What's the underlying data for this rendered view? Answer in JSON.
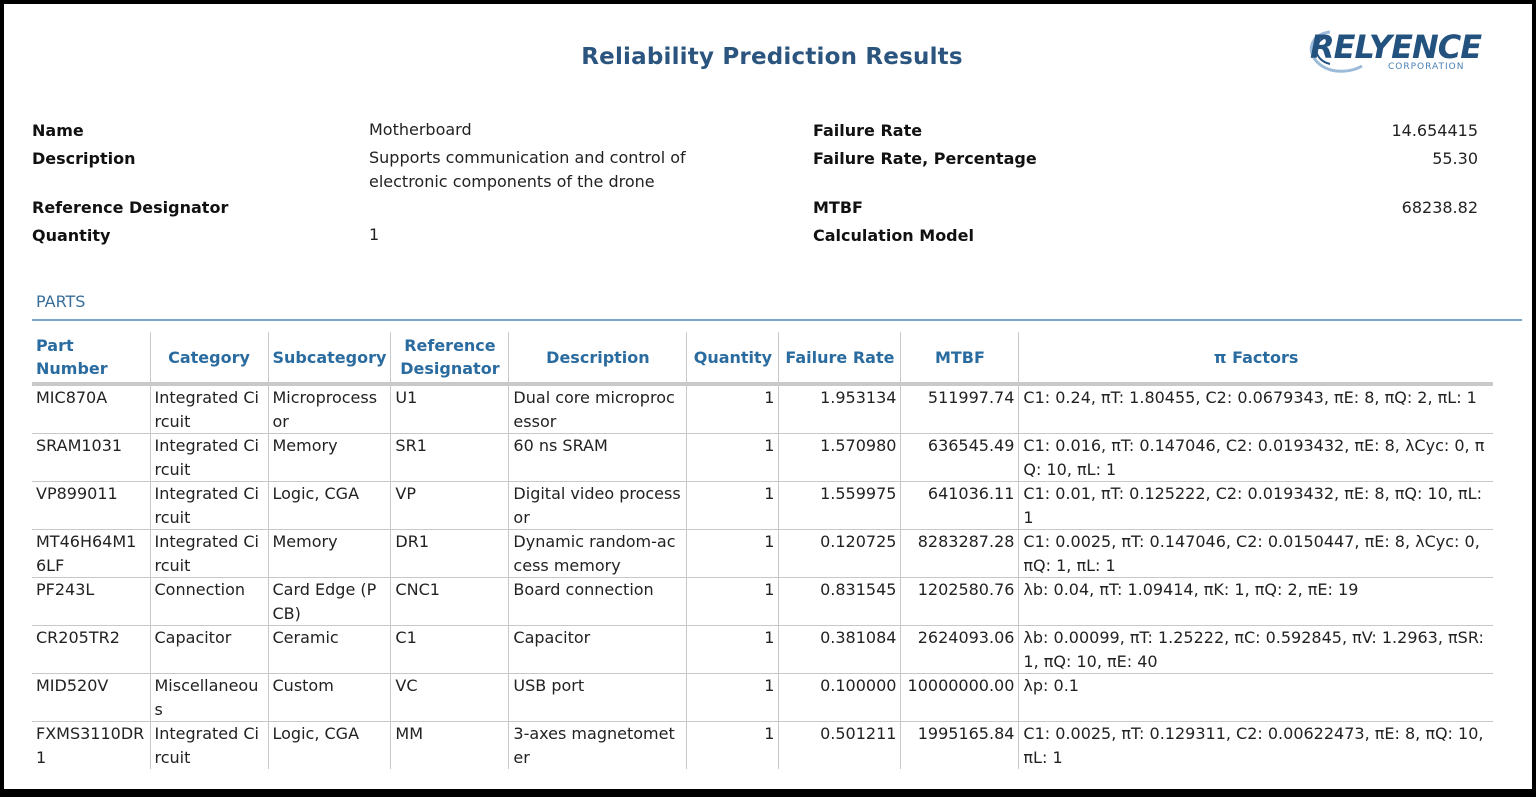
{
  "report": {
    "title": "Reliability Prediction Results",
    "logo_text": "RELYENCE",
    "logo_subtext": "CORPORATION",
    "accent_color": "#2b557e"
  },
  "summary": {
    "name_label": "Name",
    "name_value": "Motherboard",
    "description_label": "Description",
    "description_value": "Supports communication and control of electronic components of the drone",
    "refdes_label": "Reference Designator",
    "refdes_value": "",
    "quantity_label": "Quantity",
    "quantity_value": "1",
    "failure_rate_label": "Failure Rate",
    "failure_rate_value": "14.654415",
    "failure_rate_pct_label": "Failure Rate, Percentage",
    "failure_rate_pct_value": "55.30",
    "mtbf_label": "MTBF",
    "mtbf_value": "68238.82",
    "calc_model_label": "Calculation Model",
    "calc_model_value": ""
  },
  "parts": {
    "section_title": "PARTS",
    "headers": {
      "part_number": "Part Number",
      "category": "Category",
      "subcategory": "Subcategory",
      "reference_designator": "Reference Designator",
      "description": "Description",
      "quantity": "Quantity",
      "failure_rate": "Failure Rate",
      "mtbf": "MTBF",
      "pi_factors": "π Factors"
    },
    "rows": [
      {
        "part_number": "MIC870A",
        "category": "Integrated Circuit",
        "subcategory": "Microprocessor",
        "refdes": "U1",
        "description": "Dual core microprocessor",
        "quantity": "1",
        "failure_rate": "1.953134",
        "mtbf": "511997.74",
        "pi_factors": "C1: 0.24, πT: 1.80455, C2: 0.0679343, πE: 8, πQ: 2, πL: 1"
      },
      {
        "part_number": "SRAM1031",
        "category": "Integrated Circuit",
        "subcategory": "Memory",
        "refdes": "SR1",
        "description": "60 ns SRAM",
        "quantity": "1",
        "failure_rate": "1.570980",
        "mtbf": "636545.49",
        "pi_factors": "C1: 0.016, πT: 0.147046, C2: 0.0193432, πE: 8, λCyc: 0, πQ: 10, πL: 1"
      },
      {
        "part_number": "VP899011",
        "category": "Integrated Circuit",
        "subcategory": "Logic, CGA",
        "refdes": "VP",
        "description": "Digital video processor",
        "quantity": "1",
        "failure_rate": "1.559975",
        "mtbf": "641036.11",
        "pi_factors": "C1: 0.01, πT: 0.125222, C2: 0.0193432, πE: 8, πQ: 10, πL: 1"
      },
      {
        "part_number": "MT46H64M16LF",
        "category": "Integrated Circuit",
        "subcategory": "Memory",
        "refdes": "DR1",
        "description": "Dynamic random-access memory",
        "quantity": "1",
        "failure_rate": "0.120725",
        "mtbf": "8283287.28",
        "pi_factors": "C1: 0.0025, πT: 0.147046, C2: 0.0150447, πE: 8, λCyc: 0, πQ: 1, πL: 1"
      },
      {
        "part_number": "PF243L",
        "category": "Connection",
        "subcategory": "Card Edge (PCB)",
        "refdes": "CNC1",
        "description": "Board connection",
        "quantity": "1",
        "failure_rate": "0.831545",
        "mtbf": "1202580.76",
        "pi_factors": "λb: 0.04, πT: 1.09414, πK: 1, πQ: 2, πE: 19"
      },
      {
        "part_number": "CR205TR2",
        "category": "Capacitor",
        "subcategory": "Ceramic",
        "refdes": "C1",
        "description": "Capacitor",
        "quantity": "1",
        "failure_rate": "0.381084",
        "mtbf": "2624093.06",
        "pi_factors": "λb: 0.00099, πT: 1.25222, πC: 0.592845, πV: 1.2963, πSR: 1, πQ: 10, πE: 40"
      },
      {
        "part_number": "MID520V",
        "category": "Miscellaneous",
        "subcategory": "Custom",
        "refdes": "VC",
        "description": "USB port",
        "quantity": "1",
        "failure_rate": "0.100000",
        "mtbf": "10000000.00",
        "pi_factors": "λp: 0.1"
      },
      {
        "part_number": "FXMS3110DR1",
        "category": "Integrated Circuit",
        "subcategory": "Logic, CGA",
        "refdes": "MM",
        "description": "3-axes magnetometer",
        "quantity": "1",
        "failure_rate": "0.501211",
        "mtbf": "1995165.84",
        "pi_factors": "C1: 0.0025, πT: 0.129311, C2: 0.00622473, πE: 8, πQ: 10, πL: 1"
      }
    ]
  }
}
